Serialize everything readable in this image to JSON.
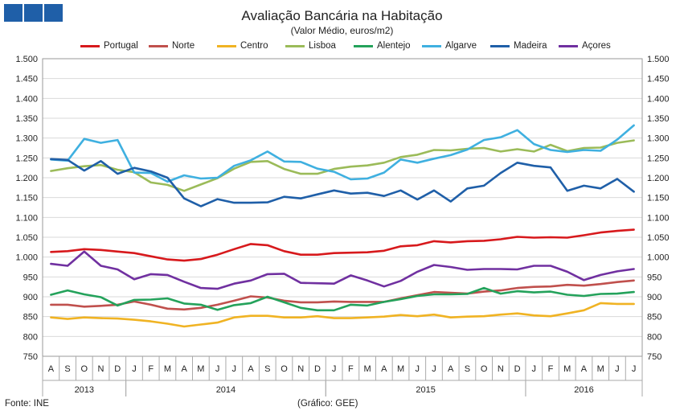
{
  "chart_data": {
    "type": "line",
    "title": "Avaliação Bancária na Habitação",
    "subtitle": "(Valor Médio, euros/m2)",
    "source": "Fonte: INE",
    "credit": "(Gráfico: GEE)",
    "ylim": [
      750,
      1500
    ],
    "yticks": [
      "750",
      "800",
      "850",
      "900",
      "950",
      "1.000",
      "1.050",
      "1.100",
      "1.150",
      "1.200",
      "1.250",
      "1.300",
      "1.350",
      "1.400",
      "1.450",
      "1.500"
    ],
    "x": [
      "A",
      "S",
      "O",
      "N",
      "D",
      "J",
      "F",
      "M",
      "A",
      "M",
      "J",
      "J",
      "A",
      "S",
      "O",
      "N",
      "D",
      "J",
      "F",
      "M",
      "A",
      "M",
      "J",
      "J",
      "A",
      "S",
      "O",
      "N",
      "D",
      "J",
      "F",
      "M",
      "A",
      "M",
      "J",
      "J"
    ],
    "years": [
      {
        "label": "2013",
        "start": 0,
        "end": 5
      },
      {
        "label": "2014",
        "start": 5,
        "end": 17
      },
      {
        "label": "2015",
        "start": 17,
        "end": 29
      },
      {
        "label": "2016",
        "start": 29,
        "end": 36
      }
    ],
    "grid": true,
    "legend_position": "top",
    "series": [
      {
        "name": "Portugal",
        "color": "#d7191c",
        "values": [
          1013,
          1015,
          1020,
          1018,
          1014,
          1010,
          1002,
          994,
          991,
          995,
          1006,
          1020,
          1033,
          1030,
          1015,
          1006,
          1006,
          1010,
          1011,
          1012,
          1016,
          1027,
          1030,
          1040,
          1037,
          1040,
          1041,
          1045,
          1051,
          1049,
          1050,
          1049,
          1055,
          1062,
          1066,
          1069
        ]
      },
      {
        "name": "Norte",
        "color": "#c0504d",
        "values": [
          880,
          880,
          875,
          877,
          880,
          888,
          880,
          870,
          868,
          872,
          880,
          890,
          901,
          898,
          890,
          886,
          886,
          888,
          887,
          887,
          887,
          896,
          904,
          912,
          910,
          908,
          913,
          916,
          922,
          925,
          926,
          930,
          928,
          932,
          937,
          941
        ]
      },
      {
        "name": "Centro",
        "color": "#f0b323",
        "values": [
          848,
          844,
          848,
          846,
          845,
          842,
          838,
          832,
          825,
          830,
          835,
          848,
          852,
          852,
          848,
          848,
          851,
          846,
          846,
          848,
          850,
          854,
          851,
          855,
          848,
          850,
          851,
          855,
          858,
          853,
          851,
          858,
          866,
          884,
          882,
          882
        ]
      },
      {
        "name": "Lisboa",
        "color": "#9bbb59",
        "values": [
          1217,
          1224,
          1229,
          1232,
          1220,
          1214,
          1188,
          1182,
          1167,
          1183,
          1199,
          1223,
          1240,
          1242,
          1222,
          1210,
          1210,
          1222,
          1228,
          1231,
          1238,
          1252,
          1258,
          1270,
          1269,
          1273,
          1275,
          1266,
          1272,
          1266,
          1283,
          1267,
          1275,
          1276,
          1288,
          1294
        ]
      },
      {
        "name": "Alentejo",
        "color": "#24a25b",
        "values": [
          905,
          916,
          906,
          899,
          878,
          892,
          893,
          896,
          883,
          880,
          867,
          879,
          884,
          900,
          886,
          872,
          866,
          866,
          880,
          878,
          887,
          894,
          902,
          906,
          906,
          907,
          922,
          908,
          914,
          911,
          913,
          905,
          902,
          907,
          908,
          912
        ]
      },
      {
        "name": "Algarve",
        "color": "#3fb0e0",
        "values": [
          1246,
          1243,
          1298,
          1288,
          1295,
          1213,
          1212,
          1190,
          1206,
          1198,
          1200,
          1230,
          1244,
          1266,
          1241,
          1240,
          1223,
          1215,
          1196,
          1198,
          1213,
          1246,
          1238,
          1248,
          1257,
          1271,
          1295,
          1302,
          1320,
          1285,
          1270,
          1265,
          1270,
          1268,
          1296,
          1332
        ]
      },
      {
        "name": "Madeira",
        "color": "#1f5fa8",
        "values": [
          1247,
          1245,
          1218,
          1242,
          1210,
          1225,
          1216,
          1200,
          1148,
          1128,
          1146,
          1137,
          1137,
          1138,
          1152,
          1148,
          1158,
          1168,
          1160,
          1162,
          1154,
          1168,
          1145,
          1168,
          1140,
          1173,
          1180,
          1212,
          1238,
          1230,
          1226,
          1167,
          1180,
          1173,
          1197,
          1165
        ]
      },
      {
        "name": "Açores",
        "color": "#7030a0",
        "values": [
          983,
          978,
          1014,
          978,
          969,
          944,
          957,
          955,
          938,
          922,
          920,
          933,
          941,
          957,
          958,
          935,
          934,
          933,
          954,
          941,
          926,
          940,
          963,
          980,
          975,
          968,
          970,
          970,
          969,
          978,
          978,
          963,
          942,
          955,
          964,
          970
        ]
      }
    ]
  }
}
